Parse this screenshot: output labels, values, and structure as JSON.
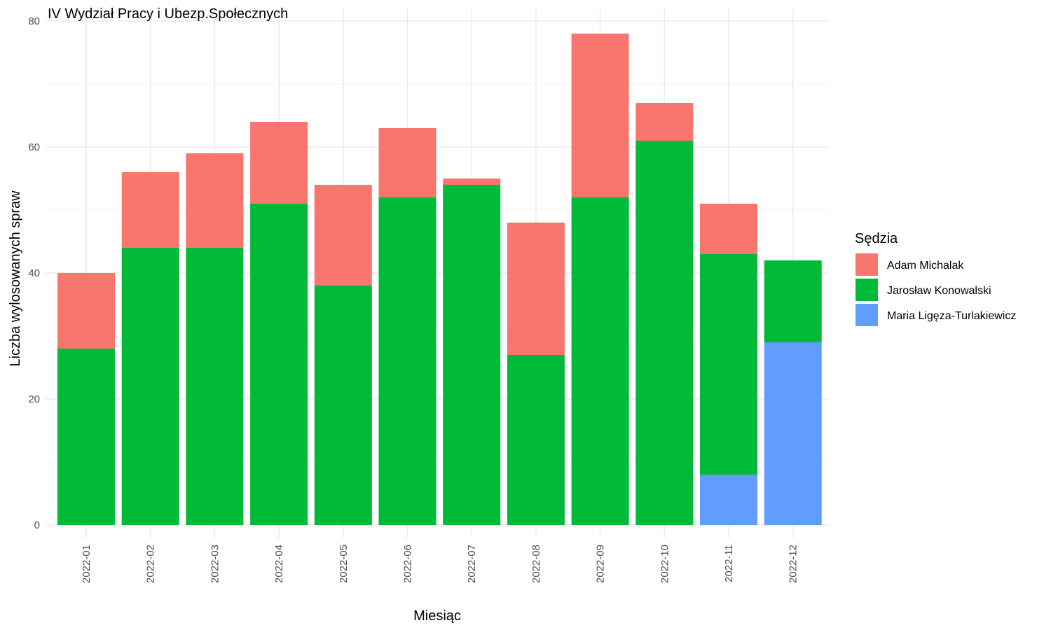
{
  "chart_data": {
    "type": "bar",
    "stacked": true,
    "title": "IV Wydział Pracy i Ubezp.Społecznych",
    "xlabel": "Miesiąc",
    "ylabel": "Liczba wylosowanych spraw",
    "ylim": [
      0,
      80
    ],
    "yticks": [
      0,
      20,
      40,
      60,
      80
    ],
    "grid": true,
    "legend_position": "right",
    "legend_title": "Sędzia",
    "categories": [
      "2022-01",
      "2022-02",
      "2022-03",
      "2022-04",
      "2022-05",
      "2022-06",
      "2022-07",
      "2022-08",
      "2022-09",
      "2022-10",
      "2022-11",
      "2022-12"
    ],
    "series": [
      {
        "name": "Adam Michalak",
        "color": "#F8766D",
        "values": [
          12,
          12,
          15,
          13,
          16,
          11,
          1,
          21,
          26,
          6,
          8,
          0
        ]
      },
      {
        "name": "Jarosław Konowalski",
        "color": "#00BA38",
        "values": [
          28,
          44,
          44,
          51,
          38,
          52,
          54,
          27,
          52,
          61,
          35,
          13
        ]
      },
      {
        "name": "Maria Ligęza-Turlakiewicz",
        "color": "#619CFF",
        "values": [
          0,
          0,
          0,
          0,
          0,
          0,
          0,
          0,
          0,
          0,
          8,
          29
        ]
      }
    ],
    "stack_order_bottom_to_top": [
      "Maria Ligęza-Turlakiewicz",
      "Jarosław Konowalski",
      "Adam Michalak"
    ]
  }
}
